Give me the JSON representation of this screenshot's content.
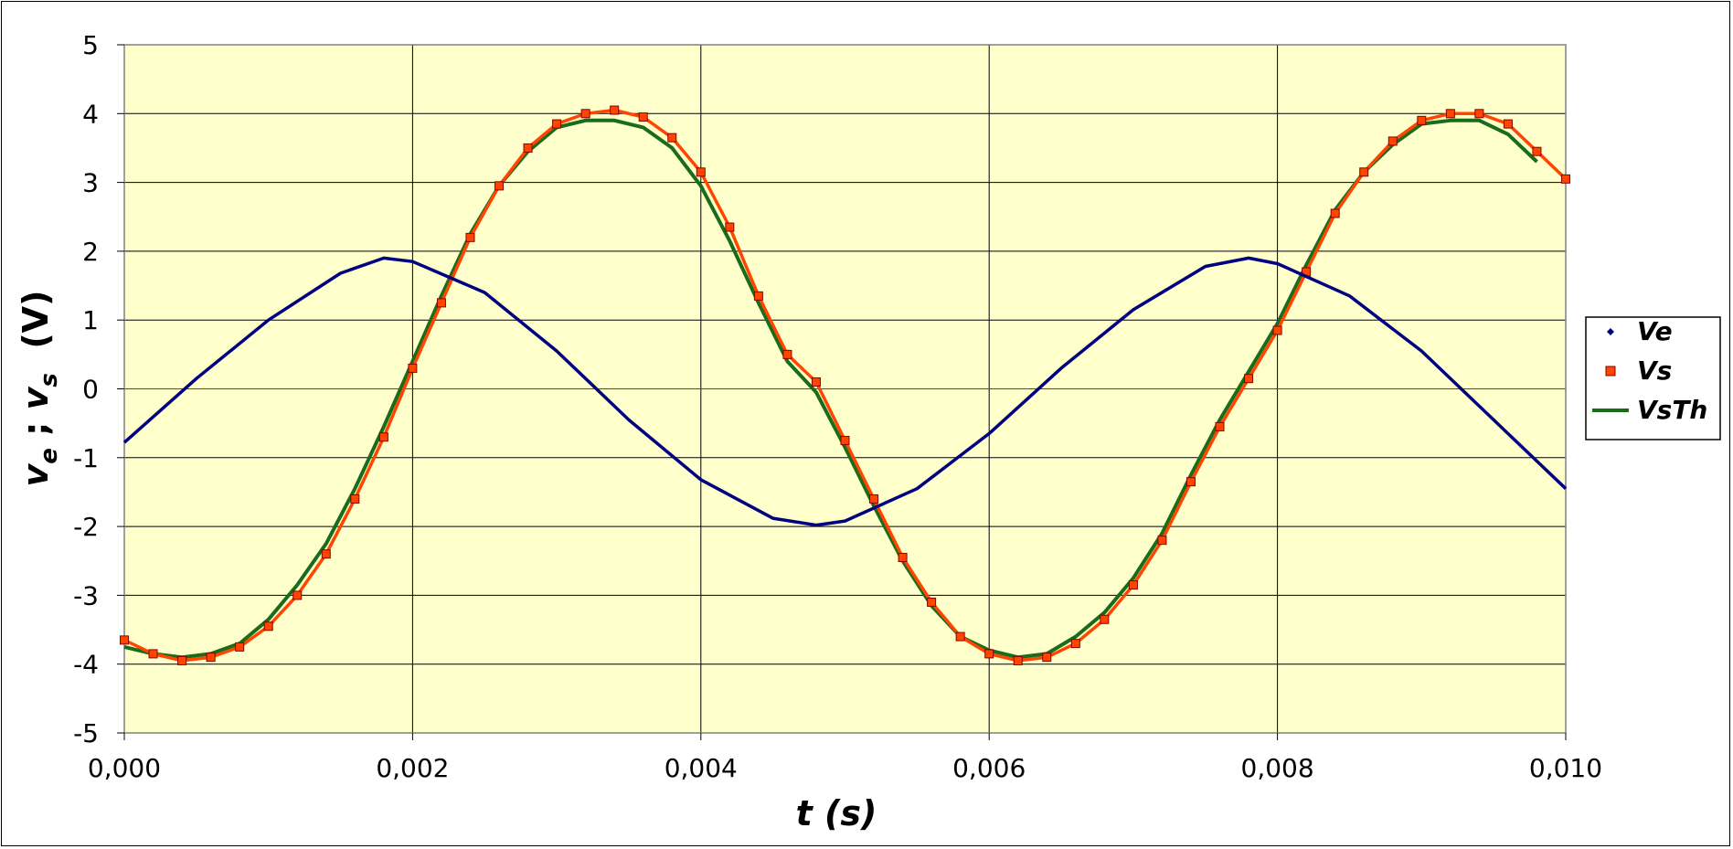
{
  "chart_data": {
    "type": "line",
    "xlabel": "t  (s)",
    "ylabel_parts": [
      "v",
      "e",
      " ; ",
      "v",
      "s",
      "  (V)"
    ],
    "xlim": [
      0,
      0.01
    ],
    "ylim": [
      -5,
      5
    ],
    "x_ticks": [
      0,
      0.002,
      0.004,
      0.006,
      0.008,
      0.01
    ],
    "x_tick_labels": [
      "0,000",
      "0,002",
      "0,004",
      "0,006",
      "0,008",
      "0,010"
    ],
    "y_ticks": [
      5,
      4,
      3,
      2,
      1,
      0,
      -1,
      -2,
      -3,
      -4,
      -5
    ],
    "y_tick_labels": [
      "5",
      "4",
      "3",
      "2",
      "1",
      "0",
      "-1",
      "-2",
      "-3",
      "-4",
      "-5"
    ],
    "grid": true,
    "legend_position": "right",
    "plot_background": "#ffffcc",
    "zero_line_color": "#ff0000",
    "series": [
      {
        "name": "Ve",
        "color": "#000080",
        "marker": "diamond",
        "x": [
          0.0,
          0.0005,
          0.001,
          0.0015,
          0.0018,
          0.002,
          0.0025,
          0.003,
          0.0035,
          0.004,
          0.0045,
          0.0048,
          0.005,
          0.0055,
          0.006,
          0.0065,
          0.007,
          0.0075,
          0.0078,
          0.008,
          0.0085,
          0.009,
          0.0095,
          0.01
        ],
        "y": [
          -0.78,
          0.15,
          1.0,
          1.68,
          1.9,
          1.85,
          1.4,
          0.55,
          -0.45,
          -1.32,
          -1.88,
          -1.98,
          -1.92,
          -1.45,
          -0.65,
          0.3,
          1.15,
          1.78,
          1.9,
          1.82,
          1.35,
          0.55,
          -0.45,
          -1.45
        ]
      },
      {
        "name": "Vs",
        "color": "#ff4500",
        "marker": "square",
        "x": [
          0.0,
          0.0002,
          0.0004,
          0.0006,
          0.0008,
          0.001,
          0.0012,
          0.0014,
          0.0016,
          0.0018,
          0.002,
          0.0022,
          0.0024,
          0.0026,
          0.0028,
          0.003,
          0.0032,
          0.0034,
          0.0036,
          0.0038,
          0.004,
          0.0042,
          0.0044,
          0.0046,
          0.0048,
          0.005,
          0.0052,
          0.0054,
          0.0056,
          0.0058,
          0.006,
          0.0062,
          0.0064,
          0.0066,
          0.0068,
          0.007,
          0.0072,
          0.0074,
          0.0076,
          0.0078,
          0.008,
          0.0082,
          0.0084,
          0.0086,
          0.0088,
          0.009,
          0.0092,
          0.0094,
          0.0096,
          0.0098,
          0.01
        ],
        "y": [
          -3.65,
          -3.85,
          -3.95,
          -3.9,
          -3.75,
          -3.45,
          -3.0,
          -2.4,
          -1.6,
          -0.7,
          0.3,
          1.25,
          2.2,
          2.95,
          3.5,
          3.85,
          4.0,
          4.05,
          3.95,
          3.65,
          3.15,
          2.35,
          1.35,
          0.5,
          0.1,
          -0.75,
          -1.6,
          -2.45,
          -3.1,
          -3.6,
          -3.85,
          -3.95,
          -3.9,
          -3.7,
          -3.35,
          -2.85,
          -2.2,
          -1.35,
          -0.55,
          0.15,
          0.85,
          1.7,
          2.55,
          3.15,
          3.6,
          3.9,
          4.0,
          4.0,
          3.85,
          3.45,
          3.05
        ]
      },
      {
        "name": "VsTh",
        "color": "#1a6b1a",
        "marker": "none",
        "x": [
          0.0,
          0.0002,
          0.0004,
          0.0006,
          0.0008,
          0.001,
          0.0012,
          0.0014,
          0.0016,
          0.0018,
          0.002,
          0.0022,
          0.0024,
          0.0026,
          0.0028,
          0.003,
          0.0032,
          0.0034,
          0.0036,
          0.0038,
          0.004,
          0.0042,
          0.0044,
          0.0046,
          0.0048,
          0.005,
          0.0052,
          0.0054,
          0.0056,
          0.0058,
          0.006,
          0.0062,
          0.0064,
          0.0066,
          0.0068,
          0.007,
          0.0072,
          0.0074,
          0.0076,
          0.0078,
          0.008,
          0.0082,
          0.0084,
          0.0086,
          0.0088,
          0.009,
          0.0092,
          0.0094,
          0.0096,
          0.0098
        ],
        "y": [
          -3.75,
          -3.85,
          -3.9,
          -3.85,
          -3.7,
          -3.35,
          -2.85,
          -2.25,
          -1.45,
          -0.55,
          0.4,
          1.35,
          2.25,
          2.95,
          3.45,
          3.8,
          3.9,
          3.9,
          3.8,
          3.5,
          2.95,
          2.15,
          1.25,
          0.4,
          -0.05,
          -0.85,
          -1.7,
          -2.5,
          -3.15,
          -3.6,
          -3.8,
          -3.9,
          -3.85,
          -3.6,
          -3.25,
          -2.75,
          -2.1,
          -1.25,
          -0.45,
          0.25,
          0.95,
          1.8,
          2.6,
          3.15,
          3.55,
          3.85,
          3.9,
          3.9,
          3.7,
          3.3
        ]
      }
    ]
  }
}
